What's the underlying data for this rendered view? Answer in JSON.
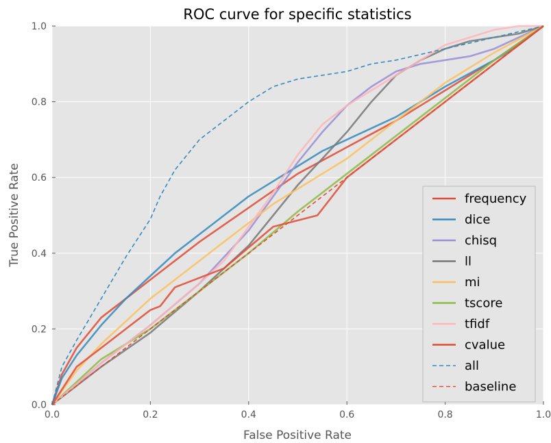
{
  "chart_data": {
    "type": "line",
    "title": "ROC curve for specific statistics",
    "xlabel": "False Positive Rate",
    "ylabel": "True Positive Rate",
    "xlim": [
      0.0,
      1.0
    ],
    "ylim": [
      0.0,
      1.0
    ],
    "xticks": [
      "0.0",
      "0.2",
      "0.4",
      "0.6",
      "0.8",
      "1.0"
    ],
    "yticks": [
      "0.0",
      "0.2",
      "0.4",
      "0.6",
      "0.8",
      "1.0"
    ],
    "grid": true,
    "legend_position": "lower-right",
    "colors": {
      "background": "#e5e5e5",
      "grid": "#ffffff"
    },
    "series": [
      {
        "name": "frequency",
        "color": "#e24a33",
        "dash": "solid",
        "x": [
          0,
          0.02,
          0.05,
          0.1,
          0.15,
          0.2,
          0.3,
          0.4,
          0.5,
          0.6,
          0.7,
          0.8,
          0.9,
          1.0
        ],
        "y": [
          0,
          0.08,
          0.15,
          0.23,
          0.28,
          0.33,
          0.43,
          0.52,
          0.61,
          0.68,
          0.75,
          0.83,
          0.91,
          1.0
        ]
      },
      {
        "name": "dice",
        "color": "#348abd",
        "dash": "solid",
        "x": [
          0,
          0.02,
          0.05,
          0.1,
          0.15,
          0.2,
          0.25,
          0.3,
          0.35,
          0.4,
          0.45,
          0.5,
          0.55,
          0.6,
          0.7,
          0.8,
          0.9,
          0.95,
          1.0
        ],
        "y": [
          0,
          0.07,
          0.13,
          0.21,
          0.28,
          0.34,
          0.4,
          0.45,
          0.5,
          0.55,
          0.59,
          0.63,
          0.67,
          0.7,
          0.76,
          0.84,
          0.91,
          0.95,
          1.0
        ]
      },
      {
        "name": "chisq",
        "color": "#988ed5",
        "dash": "solid",
        "x": [
          0,
          0.1,
          0.2,
          0.3,
          0.4,
          0.45,
          0.5,
          0.55,
          0.6,
          0.65,
          0.7,
          0.75,
          0.8,
          0.85,
          0.9,
          0.95,
          1.0
        ],
        "y": [
          0,
          0.11,
          0.21,
          0.32,
          0.46,
          0.55,
          0.64,
          0.72,
          0.79,
          0.84,
          0.88,
          0.9,
          0.91,
          0.92,
          0.94,
          0.97,
          1.0
        ]
      },
      {
        "name": "ll",
        "color": "#777777",
        "dash": "solid",
        "x": [
          0,
          0.1,
          0.2,
          0.3,
          0.4,
          0.45,
          0.5,
          0.55,
          0.6,
          0.65,
          0.7,
          0.75,
          0.8,
          0.85,
          0.9,
          0.95,
          1.0
        ],
        "y": [
          0,
          0.1,
          0.19,
          0.3,
          0.42,
          0.5,
          0.58,
          0.65,
          0.72,
          0.8,
          0.87,
          0.91,
          0.94,
          0.96,
          0.97,
          0.98,
          1.0
        ]
      },
      {
        "name": "mi",
        "color": "#fbc15e",
        "dash": "solid",
        "x": [
          0,
          0.05,
          0.1,
          0.15,
          0.2,
          0.25,
          0.3,
          0.35,
          0.4,
          0.45,
          0.5,
          0.55,
          0.6,
          0.65,
          0.7,
          0.8,
          0.9,
          1.0
        ],
        "y": [
          0,
          0.09,
          0.16,
          0.22,
          0.28,
          0.33,
          0.38,
          0.43,
          0.48,
          0.53,
          0.57,
          0.61,
          0.65,
          0.7,
          0.75,
          0.85,
          0.93,
          1.0
        ]
      },
      {
        "name": "tscore",
        "color": "#8eba42",
        "dash": "solid",
        "x": [
          0,
          0.1,
          0.2,
          0.3,
          0.4,
          0.5,
          0.6,
          0.7,
          0.8,
          0.9,
          1.0
        ],
        "y": [
          0,
          0.12,
          0.2,
          0.3,
          0.4,
          0.51,
          0.61,
          0.71,
          0.81,
          0.91,
          1.0
        ]
      },
      {
        "name": "tfidf",
        "color": "#ffb5b8",
        "dash": "solid",
        "x": [
          0,
          0.1,
          0.2,
          0.3,
          0.35,
          0.4,
          0.45,
          0.5,
          0.55,
          0.6,
          0.65,
          0.7,
          0.75,
          0.8,
          0.85,
          0.9,
          0.95,
          1.0
        ],
        "y": [
          0,
          0.11,
          0.21,
          0.32,
          0.38,
          0.47,
          0.56,
          0.66,
          0.74,
          0.79,
          0.83,
          0.87,
          0.91,
          0.95,
          0.97,
          0.99,
          1.0,
          1.0
        ]
      },
      {
        "name": "cvalue",
        "color": "#e24a33",
        "dash": "solid",
        "x": [
          0,
          0.05,
          0.1,
          0.15,
          0.2,
          0.22,
          0.25,
          0.35,
          0.45,
          0.54,
          0.6,
          0.7,
          0.8,
          0.9,
          1.0
        ],
        "y": [
          0,
          0.1,
          0.15,
          0.2,
          0.25,
          0.26,
          0.31,
          0.36,
          0.47,
          0.5,
          0.6,
          0.7,
          0.8,
          0.9,
          1.0
        ]
      },
      {
        "name": "all",
        "color": "#348abd",
        "dash": "dashed",
        "x": [
          0,
          0.02,
          0.05,
          0.1,
          0.15,
          0.2,
          0.22,
          0.25,
          0.3,
          0.35,
          0.4,
          0.45,
          0.5,
          0.55,
          0.6,
          0.65,
          0.7,
          0.8,
          0.9,
          1.0
        ],
        "y": [
          0,
          0.1,
          0.17,
          0.28,
          0.39,
          0.49,
          0.55,
          0.62,
          0.7,
          0.75,
          0.8,
          0.84,
          0.86,
          0.87,
          0.88,
          0.9,
          0.91,
          0.94,
          0.97,
          1.0
        ]
      },
      {
        "name": "baseline",
        "color": "#e24a33",
        "dash": "dashed",
        "x": [
          0,
          1.0
        ],
        "y": [
          0,
          1.0
        ]
      }
    ]
  }
}
